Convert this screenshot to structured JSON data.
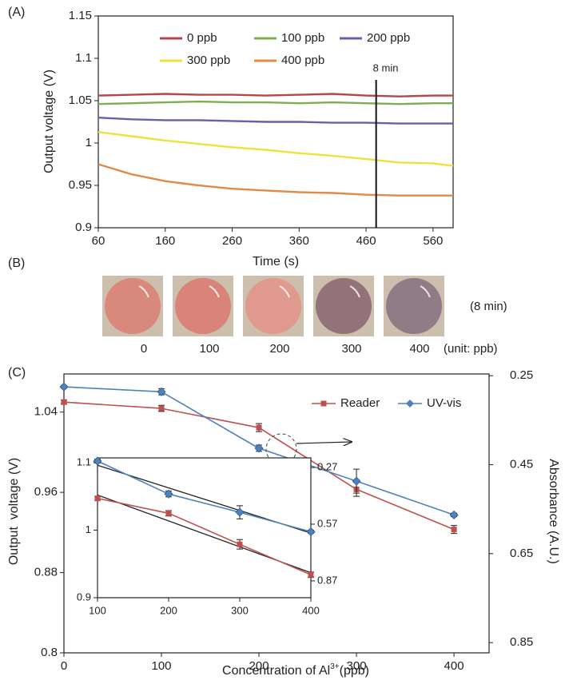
{
  "chart_data": [
    {
      "type": "line",
      "panel_label": "(A)",
      "xlabel": "Time (s)",
      "ylabel": "Output voltage (V)",
      "x": [
        60,
        110,
        160,
        210,
        260,
        310,
        360,
        410,
        460,
        510,
        560,
        590
      ],
      "series": [
        {
          "name": "0 ppb",
          "color": "#b5474a",
          "values": [
            1.056,
            1.057,
            1.058,
            1.057,
            1.057,
            1.056,
            1.057,
            1.058,
            1.056,
            1.055,
            1.056,
            1.056
          ]
        },
        {
          "name": "100 ppb",
          "color": "#7fae4f",
          "values": [
            1.046,
            1.047,
            1.048,
            1.049,
            1.048,
            1.048,
            1.047,
            1.048,
            1.047,
            1.046,
            1.047,
            1.047
          ]
        },
        {
          "name": "200 ppb",
          "color": "#6b5fa8",
          "values": [
            1.03,
            1.028,
            1.027,
            1.027,
            1.026,
            1.025,
            1.025,
            1.024,
            1.024,
            1.023,
            1.023,
            1.023
          ]
        },
        {
          "name": "300 ppb",
          "color": "#ece23a",
          "values": [
            1.013,
            1.008,
            1.003,
            0.999,
            0.995,
            0.992,
            0.988,
            0.985,
            0.981,
            0.977,
            0.976,
            0.973
          ]
        },
        {
          "name": "400 ppb",
          "color": "#e08b4a",
          "values": [
            0.975,
            0.963,
            0.955,
            0.95,
            0.946,
            0.944,
            0.942,
            0.941,
            0.939,
            0.938,
            0.938,
            0.938
          ]
        }
      ],
      "xlim": [
        60,
        590
      ],
      "xticks": [
        60,
        160,
        260,
        360,
        460,
        560
      ],
      "ylim": [
        0.9,
        1.15
      ],
      "yticks": [
        0.9,
        0.95,
        1,
        1.05,
        1.1,
        1.15
      ],
      "annotation": {
        "x": 475,
        "label": "8 min"
      }
    },
    {
      "type": "line",
      "panel_label": "(C)",
      "xlabel": [
        "Concentration of Al",
        "3+",
        "(ppb)"
      ],
      "ylabel": "Output  voltage (V)",
      "y2label": "Absorbance (A.U.)",
      "x": [
        0,
        100,
        200,
        300,
        400
      ],
      "series": [
        {
          "name": "Reader",
          "color": "#c0504d",
          "marker": "square",
          "axis": "y",
          "values": [
            1.05,
            1.0437,
            1.0245,
            0.963,
            0.923
          ],
          "errors": [
            0.002,
            0.003,
            0.004,
            0.007,
            0.004
          ]
        },
        {
          "name": "UV-vis",
          "color": "#4f81bd",
          "marker": "diamond",
          "axis": "y2",
          "values": [
            0.275,
            0.286,
            0.413,
            0.487,
            0.563
          ],
          "errors": [
            0.003,
            0.007,
            0.007,
            0.027,
            0.004
          ]
        }
      ],
      "xlim": [
        0,
        436
      ],
      "xticks": [
        0,
        100,
        200,
        300,
        400
      ],
      "ylim": [
        0.8,
        1.078
      ],
      "yticks": [
        0.8,
        0.88,
        0.96,
        1.04
      ],
      "y2lim": [
        0.873,
        0.246
      ],
      "y2ticks": [
        0.25,
        0.45,
        0.65,
        0.85
      ]
    },
    {
      "type": "line",
      "x": [
        100,
        200,
        300,
        400
      ],
      "series": [
        {
          "color": "#c0504d",
          "marker": "square",
          "axis": "y",
          "values": [
            1.047,
            1.025,
            0.979,
            0.934
          ],
          "errors": [
            0.003,
            0.004,
            0.007,
            0.004
          ]
        },
        {
          "color": "#4f81bd",
          "marker": "diamond",
          "axis": "y2",
          "values": [
            0.236,
            0.41,
            0.507,
            0.61
          ],
          "errors": [
            0.01,
            0.015,
            0.035,
            0.008
          ]
        }
      ],
      "fit_lines": [
        {
          "axis": "y",
          "x": [
            100,
            400
          ],
          "values": [
            1.052,
            0.937
          ]
        },
        {
          "axis": "y2",
          "x": [
            100,
            400
          ],
          "values": [
            0.258,
            0.617
          ]
        }
      ],
      "xlim": [
        100,
        400
      ],
      "xticks": [
        100,
        200,
        300,
        400
      ],
      "ylim": [
        0.9,
        1.107
      ],
      "yticks": [
        0.9,
        1,
        1.1
      ],
      "y2lim": [
        0.959,
        0.219
      ],
      "y2ticks": [
        0.27,
        0.57,
        0.87
      ]
    }
  ],
  "panel_b": {
    "label": "(B)",
    "samples": [
      {
        "label": "0",
        "color": "#d9897c"
      },
      {
        "label": "100",
        "color": "#d98478"
      },
      {
        "label": "200",
        "color": "#e09a8d"
      },
      {
        "label": "300",
        "color": "#94727a"
      },
      {
        "label": "400",
        "color": "#8f7c86"
      }
    ],
    "time_note": "(8 min)",
    "unit_note": "(unit: ppb)"
  }
}
